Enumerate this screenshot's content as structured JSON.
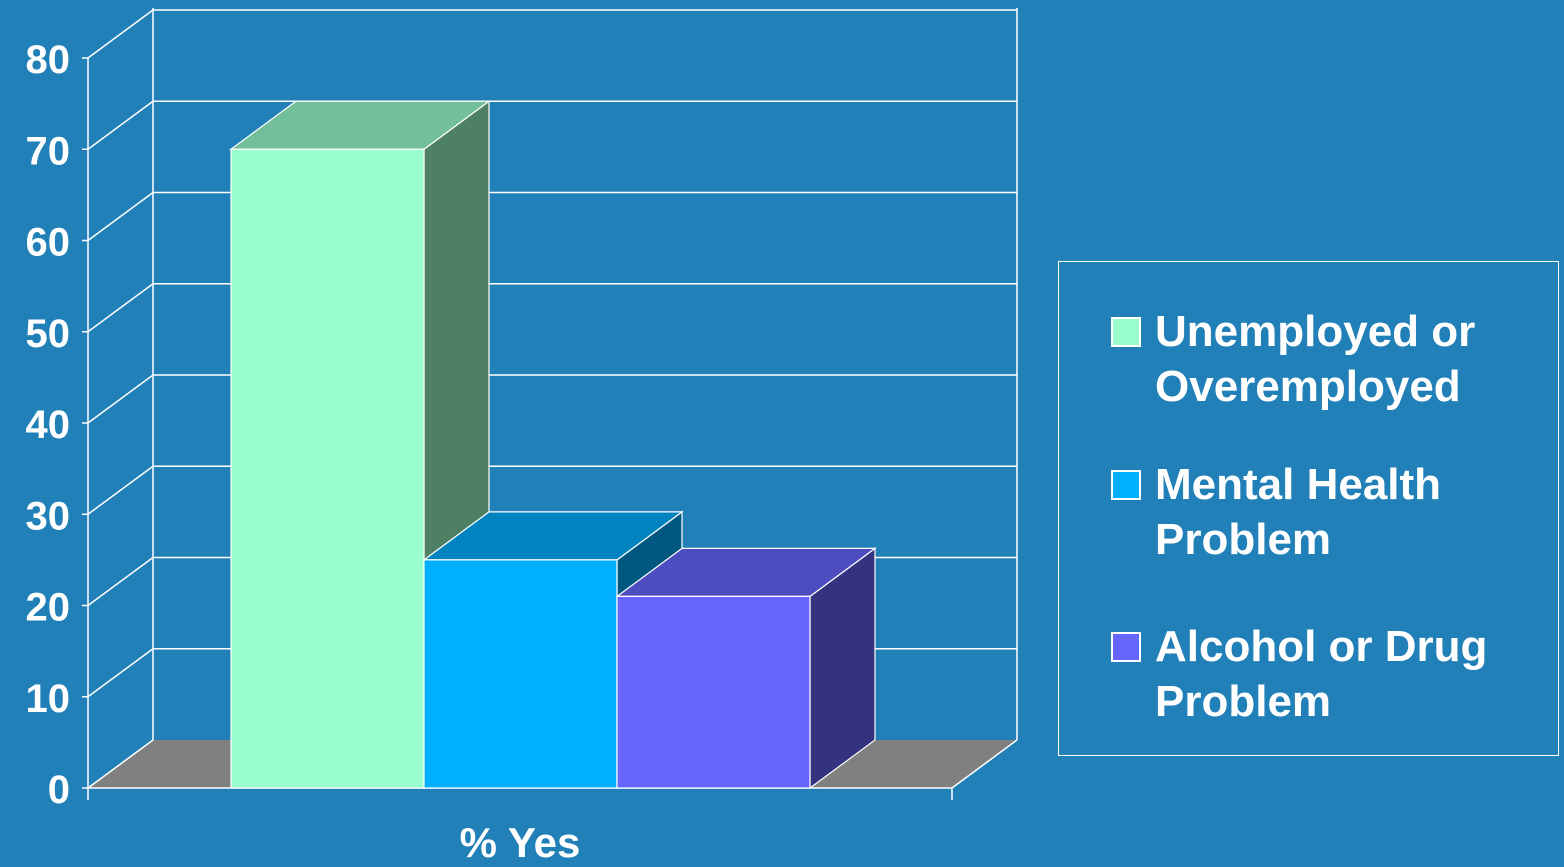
{
  "chart_data": {
    "type": "bar",
    "categories": [
      "% Yes"
    ],
    "series": [
      {
        "name": "Unemployed or Overemployed",
        "values": [
          70
        ],
        "color": "#99FFCC",
        "side_color": "#4E8066",
        "top_color": "#73BF99"
      },
      {
        "name": "Mental Health Problem",
        "values": [
          25
        ],
        "color": "#00B0FF",
        "side_color": "#005880",
        "top_color": "#0084BF"
      },
      {
        "name": "Alcohol or Drug Problem",
        "values": [
          21
        ],
        "color": "#6666FF",
        "side_color": "#333380",
        "top_color": "#4D4DBF"
      }
    ],
    "xlabel": "% Yes",
    "ylabel": "",
    "title": "",
    "ylim": [
      0,
      80
    ],
    "yticks": [
      0,
      10,
      20,
      30,
      40,
      50,
      60,
      70,
      80
    ],
    "grid": true,
    "legend_position": "right",
    "three_d": true
  },
  "colors": {
    "background": "#2280B8",
    "floor": "#808080",
    "lines": "#FFFFFF"
  }
}
